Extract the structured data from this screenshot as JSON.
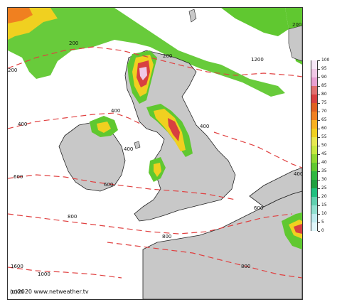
{
  "map": {
    "copyright": "(c)2020  www.netweather.tv",
    "isoline_color": "#e04040",
    "land_color": "#c8c8c8",
    "sea_color": "#ffffff",
    "iso_labels": [
      "200",
      "200",
      "200",
      "400",
      "400",
      "400",
      "400",
      "600",
      "600",
      "600",
      "800",
      "800",
      "800",
      "1000",
      "1000",
      "1600",
      "1200",
      "400",
      "200"
    ]
  },
  "colorbar": {
    "ticks": [
      "100",
      "95",
      "90",
      "85",
      "80",
      "75",
      "70",
      "65",
      "60",
      "55",
      "50",
      "45",
      "40",
      "35",
      "30",
      "25",
      "20",
      "15",
      "10",
      "5",
      "0"
    ],
    "colors": [
      "#f6e6f6",
      "#f0c8e6",
      "#e8a0d2",
      "#e07070",
      "#d84040",
      "#e06020",
      "#f08020",
      "#f8b020",
      "#f0d020",
      "#e8e850",
      "#c8e840",
      "#90d830",
      "#60c830",
      "#30b840",
      "#20a040",
      "#20c080",
      "#60d0b0",
      "#90e0d0",
      "#c0ecf0",
      "#e0f6fa"
    ]
  }
}
